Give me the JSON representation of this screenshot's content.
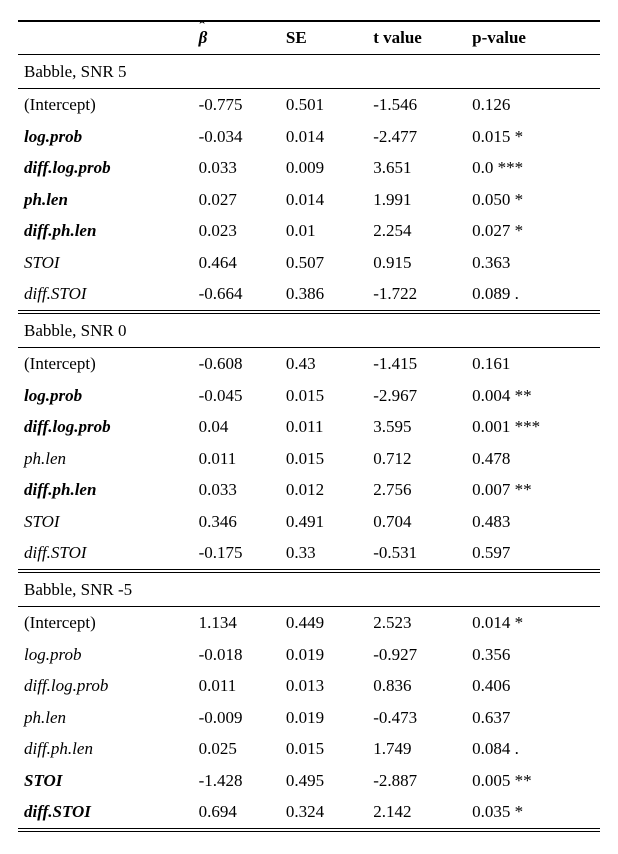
{
  "columns": {
    "label": "",
    "beta_symbol": "β",
    "se": "SE",
    "t": "t value",
    "p": "p-value"
  },
  "sections": [
    {
      "title": "Babble, SNR 5",
      "rows": [
        {
          "label": "(Intercept)",
          "style": "plain",
          "beta": "-0.775",
          "se": "0.501",
          "t": "-1.546",
          "p": "0.126"
        },
        {
          "label": "log.prob",
          "style": "bold-italic",
          "beta": "-0.034",
          "se": "0.014",
          "t": "-2.477",
          "p": "0.015 *"
        },
        {
          "label": "diff.log.prob",
          "style": "bold-italic",
          "beta": "0.033",
          "se": "0.009",
          "t": "3.651",
          "p": "0.0 ***"
        },
        {
          "label": "ph.len",
          "style": "bold-italic",
          "beta": "0.027",
          "se": "0.014",
          "t": "1.991",
          "p": "0.050 *"
        },
        {
          "label": "diff.ph.len",
          "style": "bold-italic",
          "beta": "0.023",
          "se": "0.01",
          "t": "2.254",
          "p": "0.027 *"
        },
        {
          "label": "STOI",
          "style": "italic",
          "beta": "0.464",
          "se": "0.507",
          "t": "0.915",
          "p": "0.363"
        },
        {
          "label": "diff.STOI",
          "style": "italic",
          "beta": "-0.664",
          "se": "0.386",
          "t": "-1.722",
          "p": "0.089 ."
        }
      ]
    },
    {
      "title": "Babble, SNR 0",
      "rows": [
        {
          "label": "(Intercept)",
          "style": "plain",
          "beta": "-0.608",
          "se": "0.43",
          "t": "-1.415",
          "p": "0.161"
        },
        {
          "label": "log.prob",
          "style": "bold-italic",
          "beta": "-0.045",
          "se": "0.015",
          "t": "-2.967",
          "p": "0.004 **"
        },
        {
          "label": "diff.log.prob",
          "style": "bold-italic",
          "beta": "0.04",
          "se": "0.011",
          "t": "3.595",
          "p": "0.001 ***"
        },
        {
          "label": "ph.len",
          "style": "italic",
          "beta": "0.011",
          "se": "0.015",
          "t": "0.712",
          "p": "0.478"
        },
        {
          "label": "diff.ph.len",
          "style": "bold-italic",
          "beta": "0.033",
          "se": "0.012",
          "t": "2.756",
          "p": "0.007 **"
        },
        {
          "label": "STOI",
          "style": "italic",
          "beta": "0.346",
          "se": "0.491",
          "t": "0.704",
          "p": "0.483"
        },
        {
          "label": "diff.STOI",
          "style": "italic",
          "beta": "-0.175",
          "se": "0.33",
          "t": "-0.531",
          "p": "0.597"
        }
      ]
    },
    {
      "title": "Babble, SNR -5",
      "rows": [
        {
          "label": "(Intercept)",
          "style": "plain",
          "beta": "1.134",
          "se": "0.449",
          "t": "2.523",
          "p": "0.014 *"
        },
        {
          "label": "log.prob",
          "style": "italic",
          "beta": "-0.018",
          "se": "0.019",
          "t": "-0.927",
          "p": "0.356"
        },
        {
          "label": "diff.log.prob",
          "style": "italic",
          "beta": "0.011",
          "se": "0.013",
          "t": "0.836",
          "p": "0.406"
        },
        {
          "label": "ph.len",
          "style": "italic",
          "beta": "-0.009",
          "se": "0.019",
          "t": "-0.473",
          "p": "0.637"
        },
        {
          "label": "diff.ph.len",
          "style": "italic",
          "beta": "0.025",
          "se": "0.015",
          "t": "1.749",
          "p": "0.084 ."
        },
        {
          "label": "STOI",
          "style": "bold-italic",
          "beta": "-1.428",
          "se": "0.495",
          "t": "-2.887",
          "p": "0.005 **"
        },
        {
          "label": "diff.STOI",
          "style": "bold-italic",
          "beta": "0.694",
          "se": "0.324",
          "t": "2.142",
          "p": "0.035 *"
        }
      ]
    }
  ]
}
